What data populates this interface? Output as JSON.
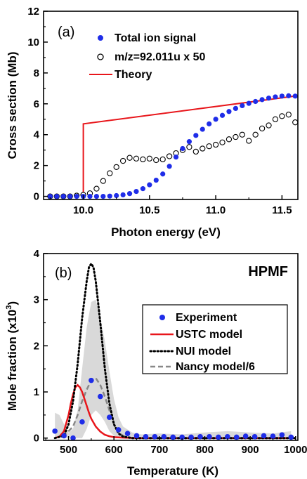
{
  "chart_data": [
    {
      "type": "scatter",
      "panel_label": "(a)",
      "xlabel": "Photon energy (eV)",
      "ylabel": "Cross section (Mb)",
      "xlim": [
        9.7,
        11.62
      ],
      "ylim": [
        -0.2,
        12
      ],
      "xticks": [
        "10.0",
        "10.5",
        "11.0",
        "11.5"
      ],
      "yticks": [
        "0",
        "2",
        "4",
        "6",
        "8",
        "10",
        "12"
      ],
      "legend_position": "top-left",
      "series": [
        {
          "name": "Total ion signal",
          "marker": "filled-circle",
          "color": "#1f2de8",
          "x": [
            9.75,
            9.8,
            9.85,
            9.9,
            9.95,
            10.0,
            10.05,
            10.1,
            10.15,
            10.2,
            10.25,
            10.3,
            10.35,
            10.4,
            10.45,
            10.5,
            10.55,
            10.6,
            10.65,
            10.7,
            10.75,
            10.8,
            10.85,
            10.9,
            10.95,
            11.0,
            11.05,
            11.1,
            11.15,
            11.2,
            11.25,
            11.3,
            11.35,
            11.4,
            11.45,
            11.5,
            11.55,
            11.6
          ],
          "y": [
            0,
            0,
            0,
            0,
            0,
            0,
            0,
            0,
            0,
            0.02,
            0.05,
            0.1,
            0.18,
            0.32,
            0.5,
            0.75,
            1.05,
            1.45,
            1.95,
            2.55,
            3.1,
            3.55,
            3.95,
            4.35,
            4.7,
            5.0,
            5.25,
            5.5,
            5.7,
            5.88,
            6.03,
            6.15,
            6.27,
            6.37,
            6.45,
            6.5,
            6.52,
            6.5
          ]
        },
        {
          "name": "m/z=92.011u x 50",
          "marker": "open-circle",
          "color": "#000000",
          "x": [
            9.75,
            9.8,
            9.85,
            9.9,
            9.95,
            10.0,
            10.05,
            10.1,
            10.15,
            10.2,
            10.25,
            10.3,
            10.35,
            10.4,
            10.45,
            10.5,
            10.55,
            10.6,
            10.65,
            10.7,
            10.75,
            10.8,
            10.85,
            10.9,
            10.95,
            11.0,
            11.05,
            11.1,
            11.15,
            11.2,
            11.25,
            11.3,
            11.35,
            11.4,
            11.45,
            11.5,
            11.55,
            11.6
          ],
          "y": [
            0,
            0,
            0,
            0,
            0.05,
            0.1,
            0.2,
            0.5,
            1.0,
            1.5,
            1.9,
            2.3,
            2.5,
            2.45,
            2.4,
            2.45,
            2.35,
            2.4,
            2.6,
            2.8,
            3.0,
            3.2,
            2.9,
            3.1,
            3.25,
            3.35,
            3.5,
            3.7,
            3.85,
            4.0,
            3.6,
            4.0,
            4.4,
            4.6,
            5.0,
            5.2,
            5.3,
            4.8
          ]
        },
        {
          "name": "Theory",
          "marker": "line",
          "color": "#e8161b",
          "x": [
            10.0,
            10.0,
            11.6
          ],
          "y": [
            0,
            4.7,
            6.5
          ]
        }
      ]
    },
    {
      "type": "line",
      "panel_label": "(b)",
      "title": "HPMF",
      "xlabel": "Temperature (K)",
      "ylabel_parts": [
        "Mole fraction (x10",
        "3",
        ")"
      ],
      "xlim": [
        445,
        1005
      ],
      "ylim": [
        -0.05,
        4
      ],
      "xticks": [
        "500",
        "600",
        "700",
        "800",
        "900",
        "1000"
      ],
      "yticks": [
        "0",
        "1",
        "2",
        "3",
        "4"
      ],
      "annotation": "/6",
      "legend_position": "middle-right",
      "series": [
        {
          "name": "Experiment",
          "marker": "filled-circle",
          "color": "#1f2de8",
          "x": [
            470,
            490,
            510,
            530,
            550,
            570,
            590,
            610,
            630,
            650,
            670,
            690,
            710,
            730,
            750,
            770,
            790,
            810,
            830,
            850,
            870,
            890,
            910,
            930,
            950,
            970,
            990
          ],
          "y": [
            0.15,
            0.05,
            0.0,
            0.35,
            1.25,
            0.9,
            0.45,
            0.18,
            0.1,
            0.05,
            0.03,
            0.03,
            0.03,
            0.02,
            0.02,
            0.02,
            0.03,
            0.03,
            0.02,
            0.03,
            0.02,
            0.04,
            0.03,
            0.05,
            0.04,
            0.07,
            0.02
          ]
        },
        {
          "name": "USTC model",
          "marker": "line",
          "color": "#e8161b",
          "x": [
            470,
            480,
            490,
            500,
            505,
            510,
            515,
            520,
            525,
            530,
            535,
            540,
            545,
            550,
            560,
            570,
            580,
            590,
            600,
            620,
            650,
            700,
            800,
            1000
          ],
          "y": [
            0,
            0.03,
            0.15,
            0.5,
            0.75,
            0.95,
            1.1,
            1.15,
            1.1,
            1.0,
            0.85,
            0.7,
            0.55,
            0.42,
            0.25,
            0.14,
            0.07,
            0.04,
            0.02,
            0.01,
            0,
            0,
            0,
            0
          ]
        },
        {
          "name": "NUI model",
          "marker": "line",
          "color": "#000000",
          "x": [
            470,
            490,
            500,
            510,
            520,
            530,
            540,
            545,
            550,
            555,
            560,
            570,
            580,
            590,
            600,
            610,
            620,
            640,
            700,
            800,
            1000
          ],
          "y": [
            0,
            0.05,
            0.3,
            0.8,
            1.6,
            2.6,
            3.4,
            3.7,
            3.78,
            3.7,
            3.4,
            2.5,
            1.5,
            0.75,
            0.3,
            0.1,
            0.03,
            0,
            0,
            0,
            0
          ]
        },
        {
          "name": "Nancy model/6",
          "marker": "line",
          "color": "#888888",
          "x": [
            470,
            490,
            510,
            520,
            530,
            540,
            550,
            560,
            570,
            580,
            590,
            600,
            610,
            620,
            640,
            700,
            800,
            1000
          ],
          "y": [
            0,
            0.05,
            0.25,
            0.5,
            0.8,
            1.05,
            1.25,
            1.3,
            1.15,
            0.9,
            0.6,
            0.3,
            0.12,
            0.05,
            0,
            0,
            0,
            0
          ]
        },
        {
          "name": "uncertainty band",
          "marker": "band",
          "color": "#d9d9d9",
          "x": [
            470,
            480,
            490,
            500,
            510,
            520,
            530,
            540,
            550,
            560,
            570,
            580,
            590,
            600,
            610,
            620,
            640,
            660,
            700,
            750,
            800,
            850,
            900,
            950,
            990
          ],
          "upper": [
            0.55,
            0.5,
            0.3,
            0.12,
            0.2,
            0.6,
            1.5,
            2.4,
            2.95,
            3.0,
            2.6,
            2.1,
            1.45,
            0.85,
            0.45,
            0.25,
            0.12,
            0.08,
            0.1,
            0.08,
            0.12,
            0.15,
            0.12,
            0.1,
            0.15
          ],
          "lower": [
            0,
            0,
            0,
            0,
            0,
            0,
            0,
            0.2,
            0.5,
            0.6,
            0.5,
            0.35,
            0.15,
            0.05,
            0,
            0,
            0,
            0,
            0,
            0,
            0,
            0,
            0,
            0,
            0
          ]
        }
      ]
    }
  ]
}
